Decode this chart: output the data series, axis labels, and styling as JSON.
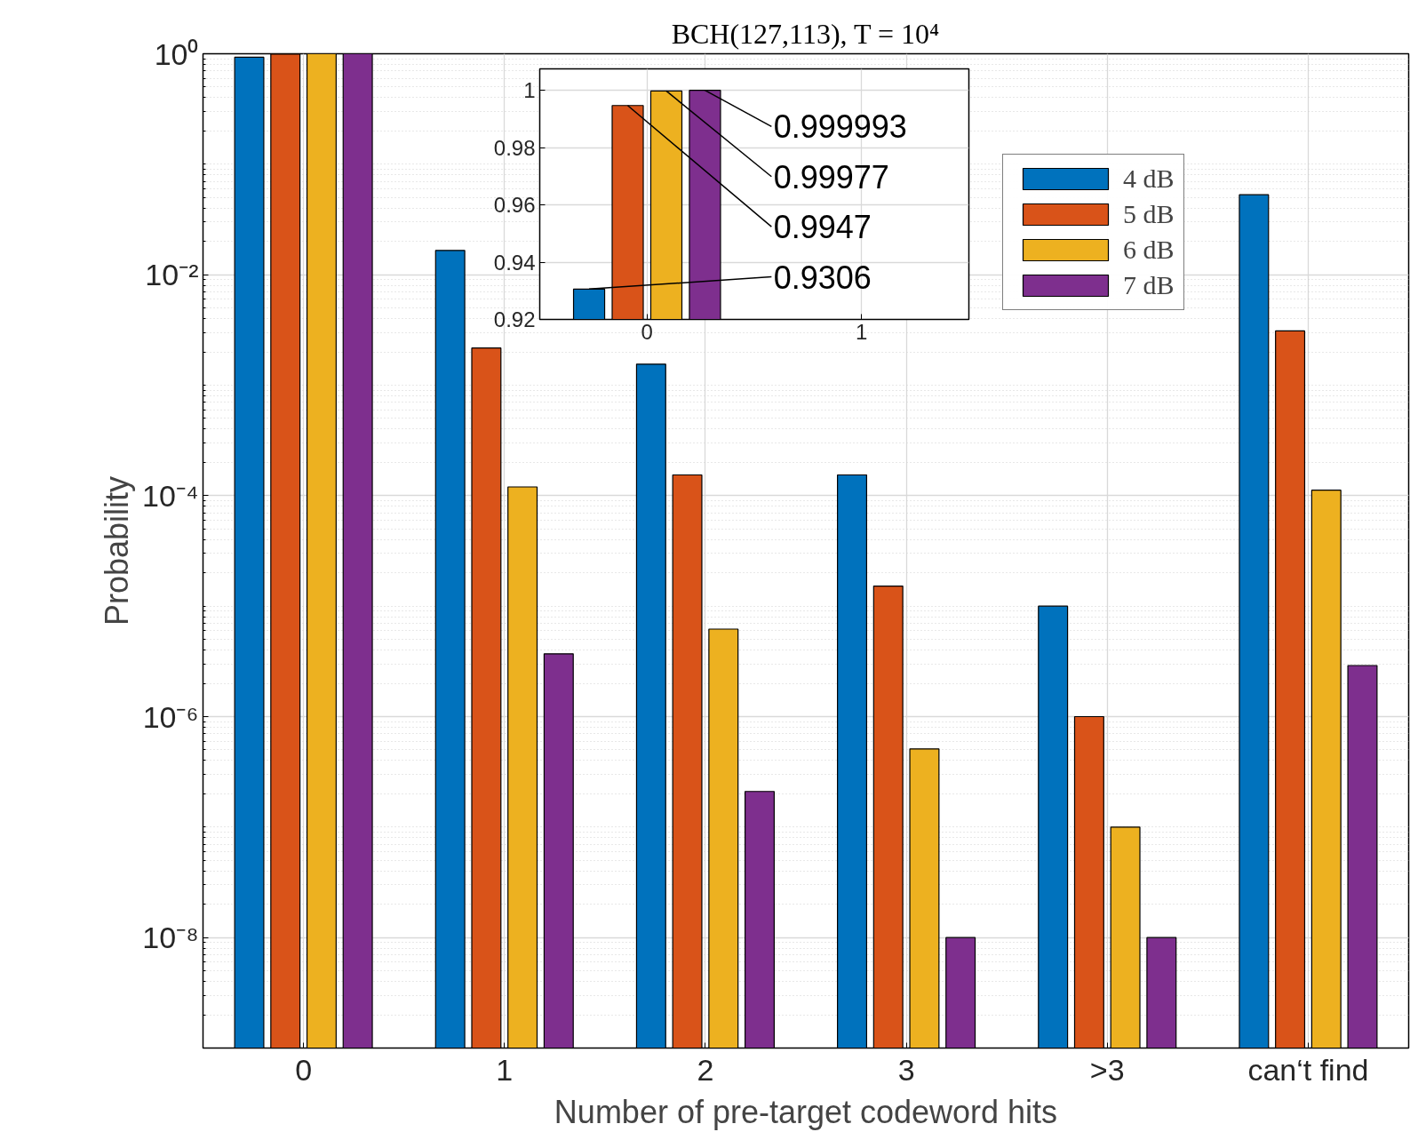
{
  "chart_data": [
    {
      "type": "bar",
      "title": "BCH(127,113), T = 10⁴",
      "xlabel": "Number of pre-target codeword hits",
      "ylabel": "Probability",
      "categories": [
        "0",
        "1",
        "2",
        "3",
        ">3",
        "can‘t find"
      ],
      "series": [
        {
          "name": "4 dB",
          "color": "#0072bd",
          "values": [
            0.9306,
            0.0166,
            0.00155,
            0.000154,
            1e-05,
            0.0529
          ]
        },
        {
          "name": "5 dB",
          "color": "#d95319",
          "values": [
            0.9947,
            0.00217,
            0.000154,
            1.52e-05,
            1e-06,
            0.0031
          ]
        },
        {
          "name": "6 dB",
          "color": "#edb120",
          "values": [
            0.99977,
            0.00012,
            6.2e-06,
            5.1e-07,
            1e-07,
            0.000112
          ]
        },
        {
          "name": "7 dB",
          "color": "#7e2f8e",
          "values": [
            0.999993,
            3.7e-06,
            2.1e-07,
            1e-08,
            1e-08,
            2.9e-06
          ]
        }
      ],
      "ylim": [
        1e-09,
        1
      ],
      "yticks": [
        {
          "value": 1e-08,
          "label": "10⁻⁸"
        },
        {
          "value": 1e-06,
          "label": "10⁻⁶"
        },
        {
          "value": 0.0001,
          "label": "10⁻⁴"
        },
        {
          "value": 0.01,
          "label": "10⁻²"
        },
        {
          "value": 1,
          "label": "10⁰"
        }
      ],
      "log": "y",
      "grid": true,
      "legend": "top right"
    },
    {
      "type": "bar",
      "series": [
        {
          "color": "#0072bd",
          "x": [
            -0.27
          ],
          "values": [
            0.9306
          ]
        },
        {
          "color": "#d95319",
          "x": [
            -0.09
          ],
          "values": [
            0.9947
          ]
        },
        {
          "color": "#edb120",
          "x": [
            0.09
          ],
          "values": [
            0.99977
          ]
        },
        {
          "color": "#7e2f8e",
          "x": [
            0.27
          ],
          "values": [
            0.999993
          ]
        }
      ],
      "xlim": [
        -0.5,
        1.5
      ],
      "xticks": [
        0,
        1
      ],
      "ylim": [
        0.92,
        1.0075
      ],
      "yticks": [
        0.92,
        0.94,
        0.96,
        0.98,
        1
      ],
      "grid": true,
      "annotations": [
        {
          "text": "0.999993",
          "x": 0.27,
          "y": 0.999993
        },
        {
          "text": "0.99977",
          "x": 0.09,
          "y": 0.99977
        },
        {
          "text": "0.9947",
          "x": -0.09,
          "y": 0.9947
        },
        {
          "text": "0.9306",
          "x": -0.27,
          "y": 0.9306
        }
      ]
    }
  ]
}
